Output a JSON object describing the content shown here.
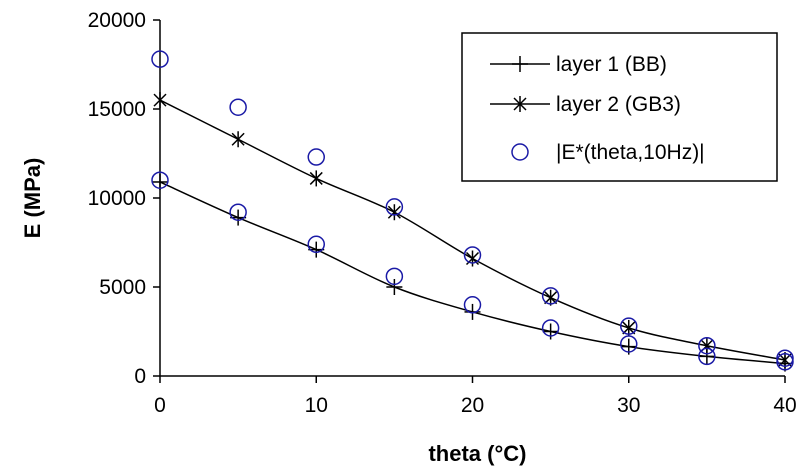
{
  "chart_data": {
    "type": "line",
    "title": "",
    "xlabel": "theta (°C)",
    "ylabel": "E (MPa)",
    "xlim": [
      0,
      40
    ],
    "ylim": [
      0,
      20000
    ],
    "xticks": [
      0,
      10,
      20,
      30,
      40
    ],
    "yticks": [
      0,
      5000,
      10000,
      15000,
      20000
    ],
    "grid": false,
    "legend_position": "top-right",
    "series": [
      {
        "name": "layer 1 (BB)",
        "marker": "plus",
        "style": "line",
        "x": [
          0,
          5,
          10,
          15,
          20,
          25,
          30,
          35,
          40
        ],
        "y": [
          10900,
          8900,
          7100,
          5000,
          3600,
          2500,
          1650,
          1100,
          700
        ]
      },
      {
        "name": "layer 2 (GB3)",
        "marker": "asterisk",
        "style": "line",
        "x": [
          0,
          5,
          10,
          15,
          20,
          25,
          30,
          35,
          40
        ],
        "y": [
          15500,
          13300,
          11100,
          9200,
          6600,
          4400,
          2700,
          1700,
          900
        ]
      },
      {
        "name": "|E*(theta,10Hz)|",
        "marker": "circle",
        "style": "markers",
        "color": "#1a1aa6",
        "x": [
          0,
          0,
          5,
          5,
          10,
          10,
          15,
          15,
          20,
          20,
          25,
          25,
          30,
          30,
          35,
          35,
          40,
          40
        ],
        "y": [
          17800,
          11000,
          15100,
          9200,
          12300,
          7400,
          9500,
          5600,
          6800,
          4000,
          4500,
          2700,
          2800,
          1800,
          1700,
          1100,
          1000,
          800
        ]
      }
    ]
  }
}
